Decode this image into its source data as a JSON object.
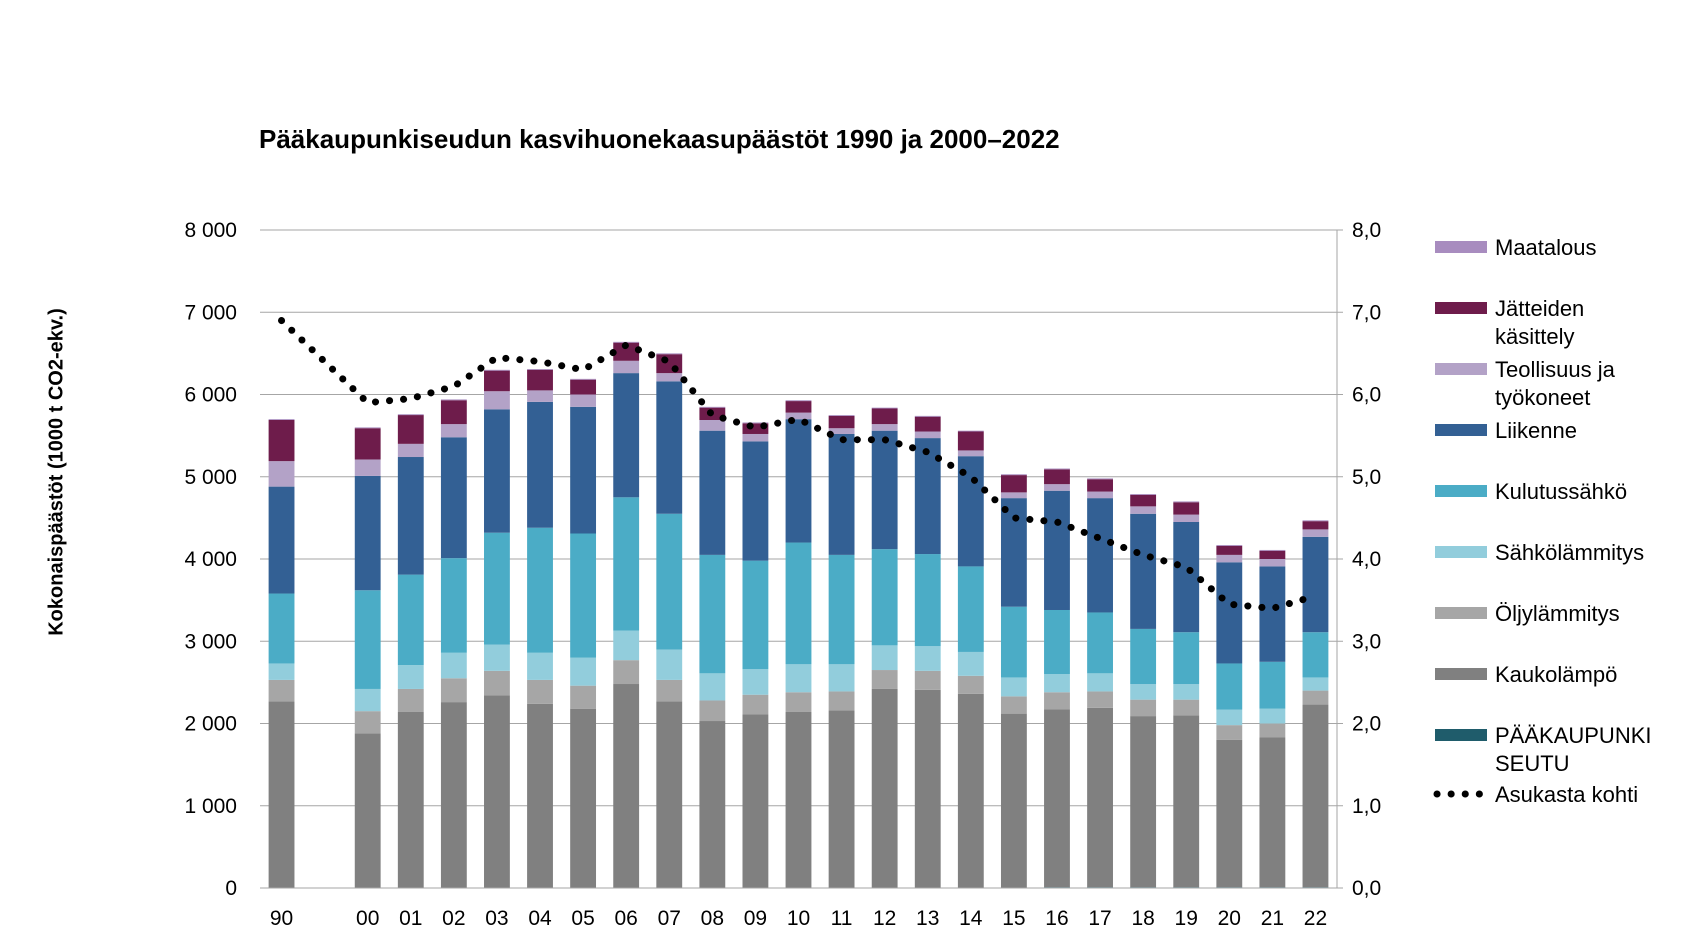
{
  "chart_data": {
    "type": "bar",
    "title": "Pääkaupunkiseudun kasvihuonekaasupäästöt 1990 ja 2000–2022",
    "ylabel": "Kokonaispäästöt (1000 t CO2-ekv.)",
    "y2label": "",
    "ylim": [
      0,
      8000
    ],
    "y2lim": [
      0,
      8
    ],
    "yticks": [
      "0",
      "1 000",
      "2 000",
      "3 000",
      "4 000",
      "5 000",
      "6 000",
      "7 000",
      "8 000"
    ],
    "y2ticks": [
      "0,0",
      "1,0",
      "2,0",
      "3,0",
      "4,0",
      "5,0",
      "6,0",
      "7,0",
      "8,0"
    ],
    "grid": true,
    "legend_position": "right",
    "categories": [
      "90",
      "",
      "00",
      "01",
      "02",
      "03",
      "04",
      "05",
      "06",
      "07",
      "08",
      "09",
      "10",
      "11",
      "12",
      "13",
      "14",
      "15",
      "16",
      "17",
      "18",
      "19",
      "20",
      "21",
      "22"
    ],
    "series": [
      {
        "name": "PÄÄKAUPUNKI SEUTU",
        "color": "#1f5c6b",
        "values": [
          0,
          null,
          0,
          0,
          0,
          0,
          0,
          0,
          0,
          0,
          0,
          0,
          0,
          0,
          0,
          0,
          0,
          0,
          10,
          10,
          10,
          10,
          10,
          10,
          10
        ]
      },
      {
        "name": "Kaukolämpö",
        "color": "#808080",
        "values": [
          2270,
          null,
          1880,
          2140,
          2260,
          2340,
          2240,
          2180,
          2480,
          2270,
          2030,
          2110,
          2140,
          2160,
          2420,
          2410,
          2360,
          2120,
          2160,
          2180,
          2080,
          2090,
          1790,
          1820,
          2220
        ]
      },
      {
        "name": "Öljylämmitys",
        "color": "#a6a6a6",
        "values": [
          260,
          null,
          270,
          280,
          290,
          300,
          290,
          280,
          290,
          260,
          250,
          240,
          240,
          230,
          230,
          230,
          220,
          210,
          210,
          200,
          200,
          190,
          180,
          170,
          170
        ]
      },
      {
        "name": "Sähkölämmitys",
        "color": "#92cddc",
        "values": [
          200,
          null,
          270,
          290,
          310,
          320,
          330,
          340,
          360,
          370,
          330,
          310,
          340,
          330,
          300,
          300,
          290,
          230,
          220,
          220,
          190,
          190,
          190,
          180,
          160
        ]
      },
      {
        "name": "Kulutussähkö",
        "color": "#4bacc6",
        "values": [
          850,
          null,
          1200,
          1100,
          1150,
          1360,
          1520,
          1510,
          1620,
          1650,
          1440,
          1320,
          1480,
          1330,
          1170,
          1120,
          1040,
          860,
          780,
          740,
          670,
          630,
          560,
          570,
          550
        ]
      },
      {
        "name": "Liikenne",
        "color": "#336094",
        "values": [
          1300,
          null,
          1390,
          1430,
          1470,
          1500,
          1530,
          1540,
          1510,
          1610,
          1510,
          1450,
          1500,
          1470,
          1440,
          1410,
          1340,
          1320,
          1450,
          1390,
          1400,
          1340,
          1230,
          1160,
          1160
        ]
      },
      {
        "name": "Teollisuus ja työkoneet",
        "color": "#b3a2c7",
        "values": [
          310,
          null,
          200,
          160,
          160,
          220,
          140,
          150,
          150,
          100,
          130,
          90,
          80,
          70,
          80,
          80,
          70,
          70,
          80,
          80,
          90,
          90,
          90,
          90,
          90
        ]
      },
      {
        "name": "Jätteiden käsittely",
        "color": "#6e1c4b",
        "values": [
          500,
          null,
          380,
          350,
          290,
          250,
          250,
          180,
          220,
          230,
          150,
          130,
          140,
          150,
          190,
          180,
          230,
          210,
          180,
          150,
          140,
          150,
          110,
          100,
          100
        ]
      },
      {
        "name": "Maatalous",
        "color": "#a88cbf",
        "values": [
          10,
          null,
          10,
          10,
          10,
          10,
          10,
          10,
          10,
          10,
          10,
          10,
          10,
          10,
          10,
          10,
          10,
          10,
          10,
          10,
          10,
          10,
          10,
          10,
          10
        ]
      }
    ],
    "line_series": {
      "name": "Asukasta kohti",
      "axis": "right",
      "color": "#000000",
      "values": [
        6.9,
        null,
        5.9,
        5.95,
        6.1,
        6.45,
        6.4,
        6.3,
        6.6,
        6.4,
        5.75,
        5.6,
        5.7,
        5.45,
        5.45,
        5.3,
        5.0,
        4.5,
        4.45,
        4.25,
        4.05,
        3.9,
        3.45,
        3.4,
        3.55
      ]
    }
  }
}
